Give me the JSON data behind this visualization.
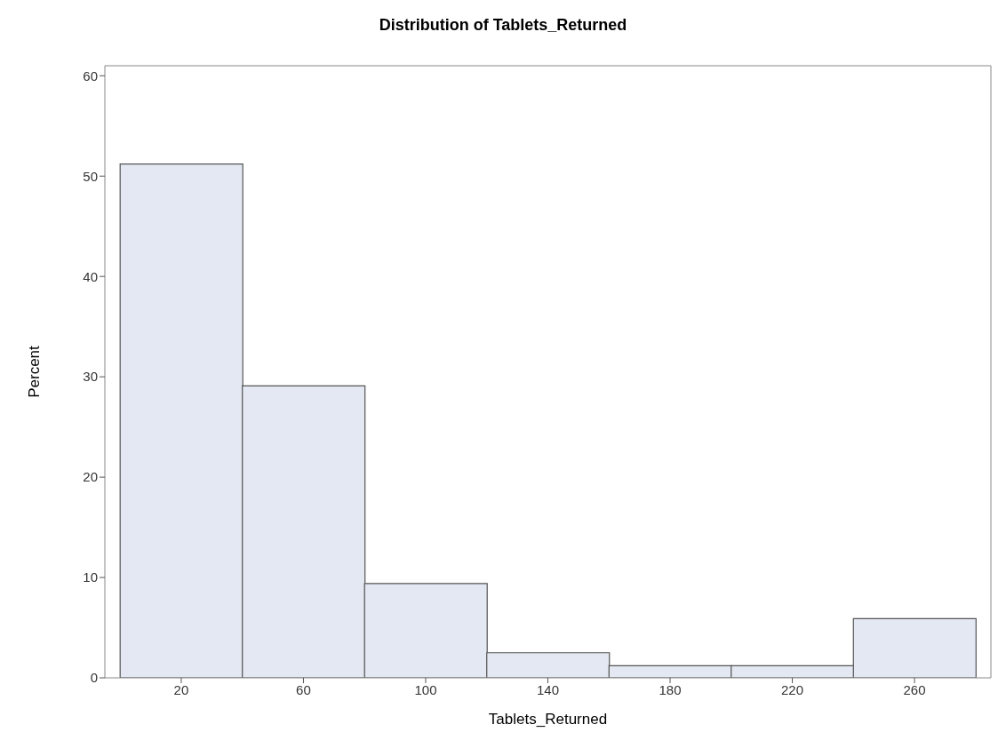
{
  "chart_data": {
    "type": "histogram",
    "title": "Distribution of Tablets_Returned",
    "xlabel": "Tablets_Returned",
    "ylabel": "Percent",
    "bins": [
      0,
      40,
      80,
      120,
      160,
      200,
      240,
      280
    ],
    "values": [
      51.2,
      29.1,
      9.4,
      2.5,
      1.2,
      1.2,
      5.9
    ],
    "color": "#e3e8f2",
    "xlim": [
      -5,
      285
    ],
    "xticks": [
      20,
      60,
      100,
      140,
      180,
      220,
      260
    ],
    "ylim": [
      0,
      61
    ],
    "yticks": [
      0,
      10,
      20,
      30,
      40,
      50,
      60
    ],
    "grid": false,
    "legend": false
  }
}
